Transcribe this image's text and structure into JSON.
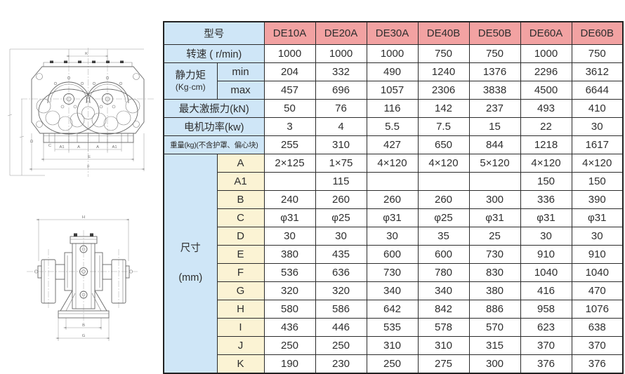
{
  "colors": {
    "header_pink": "#f2a2a2",
    "label_blue": "#cfe6f7",
    "dim_cream": "#fbf3d4",
    "grid": "#2b2b2b",
    "text": "#2e2e2e"
  },
  "table": {
    "corner_label": "型号",
    "models": [
      "DE10A",
      "DE20A",
      "DE30A",
      "DE40B",
      "DE50B",
      "DE60A",
      "DE60B"
    ],
    "body": [
      {
        "type": "wide",
        "label": "转速 ( r/min)",
        "values": [
          "1000",
          "1000",
          "1000",
          "750",
          "750",
          "1000",
          "750"
        ]
      },
      {
        "type": "group",
        "label_lines": [
          "静力矩",
          "(Kg·cm)"
        ],
        "label_style": "tight",
        "sub_style": "blue",
        "rows": [
          {
            "label": "min",
            "values": [
              "204",
              "332",
              "490",
              "1240",
              "1376",
              "2296",
              "3612"
            ]
          },
          {
            "label": "max",
            "values": [
              "457",
              "696",
              "1057",
              "2306",
              "3838",
              "4500",
              "6644"
            ]
          }
        ]
      },
      {
        "type": "wide",
        "label": "最大激振力(kN)",
        "values": [
          "50",
          "76",
          "116",
          "142",
          "237",
          "493",
          "410"
        ]
      },
      {
        "type": "wide",
        "label": "电机功率(kw)",
        "values": [
          "3",
          "4",
          "5.5",
          "7.5",
          "15",
          "22",
          "30"
        ]
      },
      {
        "type": "wide",
        "small": true,
        "label": "重量(kg)(不含护罩、偏心块)",
        "values": [
          "255",
          "310",
          "427",
          "650",
          "844",
          "1218",
          "1617"
        ]
      },
      {
        "type": "group",
        "label_lines": [
          "尺寸",
          "(mm)"
        ],
        "label_style": "spread",
        "sub_style": "cream",
        "rows": [
          {
            "label": "A",
            "values": [
              "2×125",
              "1×75",
              "4×120",
              "4×120",
              "5×120",
              "4×120",
              "4×120"
            ]
          },
          {
            "label": "A1",
            "values": [
              "",
              "115",
              "",
              "",
              "",
              "150",
              "150"
            ]
          },
          {
            "label": "B",
            "values": [
              "240",
              "260",
              "260",
              "260",
              "300",
              "336",
              "390"
            ]
          },
          {
            "label": "C",
            "values": [
              "φ31",
              "φ25",
              "φ31",
              "φ25",
              "φ31",
              "φ31",
              "φ31"
            ]
          },
          {
            "label": "D",
            "values": [
              "30",
              "30",
              "30",
              "35",
              "25",
              "30",
              "30"
            ]
          },
          {
            "label": "E",
            "values": [
              "380",
              "435",
              "600",
              "600",
              "730",
              "910",
              "910"
            ]
          },
          {
            "label": "F",
            "values": [
              "536",
              "636",
              "730",
              "780",
              "830",
              "1040",
              "1040"
            ]
          },
          {
            "label": "G",
            "values": [
              "320",
              "320",
              "340",
              "340",
              "380",
              "416",
              "470"
            ]
          },
          {
            "label": "H",
            "values": [
              "580",
              "586",
              "642",
              "842",
              "886",
              "958",
              "1076"
            ]
          },
          {
            "label": "I",
            "values": [
              "436",
              "446",
              "535",
              "578",
              "570",
              "623",
              "638"
            ]
          },
          {
            "label": "J",
            "values": [
              "250",
              "250",
              "310",
              "310",
              "315",
              "370",
              "370"
            ]
          },
          {
            "label": "K",
            "values": [
              "190",
              "230",
              "250",
              "275",
              "300",
              "376",
              "376"
            ]
          }
        ]
      }
    ]
  },
  "drawings": {
    "top": {
      "k": "K",
      "a1": "A1",
      "a": "A",
      "e": "E",
      "f": "F",
      "d": "D",
      "c": "C"
    },
    "side": {
      "h": "H",
      "b": "B",
      "g": "G"
    }
  }
}
